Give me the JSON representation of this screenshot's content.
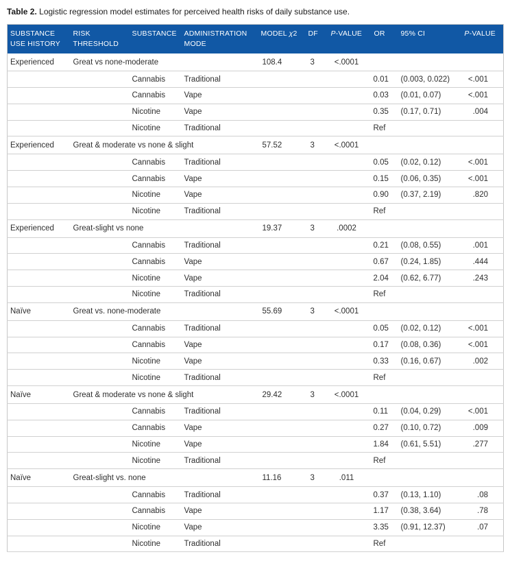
{
  "title": {
    "label": "Table 2.",
    "text": "Logistic regression model estimates for perceived health risks of daily substance use."
  },
  "colors": {
    "header_bg": "#1158a5",
    "header_text": "#ffffff",
    "row_border": "#d0d0d0",
    "body_text": "#2e2e2e"
  },
  "table": {
    "columns": {
      "history": "SUBSTANCE USE HISTORY",
      "threshold": "RISK THRESHOLD",
      "substance": "SUBSTANCE",
      "mode": "ADMINISTRATION MODE",
      "chi_prefix": "MODEL ",
      "chi_sym": "χ",
      "chi_suffix": "2",
      "df": "DF",
      "p_prefix": "P",
      "p_suffix": "-VALUE",
      "or": "OR",
      "ci": "95% CI"
    },
    "groups": [
      {
        "history": "Experienced",
        "threshold": "Great vs none-moderate",
        "chi2": "108.4",
        "df": "3",
        "p": "<.0001",
        "rows": [
          {
            "substance": "Cannabis",
            "mode": "Traditional",
            "or": "0.01",
            "ci": "(0.003, 0.022)",
            "p": "<.001"
          },
          {
            "substance": "Cannabis",
            "mode": "Vape",
            "or": "0.03",
            "ci": "(0.01, 0.07)",
            "p": "<.001"
          },
          {
            "substance": "Nicotine",
            "mode": "Vape",
            "or": "0.35",
            "ci": "(0.17, 0.71)",
            "p": ".004"
          },
          {
            "substance": "Nicotine",
            "mode": "Traditional",
            "or": "Ref",
            "ci": "",
            "p": ""
          }
        ]
      },
      {
        "history": "Experienced",
        "threshold": "Great & moderate vs none & slight",
        "chi2": "57.52",
        "df": "3",
        "p": "<.0001",
        "rows": [
          {
            "substance": "Cannabis",
            "mode": "Traditional",
            "or": "0.05",
            "ci": "(0.02, 0.12)",
            "p": "<.001"
          },
          {
            "substance": "Cannabis",
            "mode": "Vape",
            "or": "0.15",
            "ci": "(0.06, 0.35)",
            "p": "<.001"
          },
          {
            "substance": "Nicotine",
            "mode": "Vape",
            "or": "0.90",
            "ci": "(0.37, 2.19)",
            "p": ".820"
          },
          {
            "substance": "Nicotine",
            "mode": "Traditional",
            "or": "Ref",
            "ci": "",
            "p": ""
          }
        ]
      },
      {
        "history": "Experienced",
        "threshold": "Great-slight vs none",
        "chi2": "19.37",
        "df": "3",
        "p": ".0002",
        "rows": [
          {
            "substance": "Cannabis",
            "mode": "Traditional",
            "or": "0.21",
            "ci": "(0.08, 0.55)",
            "p": ".001"
          },
          {
            "substance": "Cannabis",
            "mode": "Vape",
            "or": "0.67",
            "ci": "(0.24, 1.85)",
            "p": ".444"
          },
          {
            "substance": "Nicotine",
            "mode": "Vape",
            "or": "2.04",
            "ci": "(0.62, 6.77)",
            "p": ".243"
          },
          {
            "substance": "Nicotine",
            "mode": "Traditional",
            "or": "Ref",
            "ci": "",
            "p": ""
          }
        ]
      },
      {
        "history": "Naïve",
        "threshold": "Great vs. none-moderate",
        "chi2": "55.69",
        "df": "3",
        "p": "<.0001",
        "rows": [
          {
            "substance": "Cannabis",
            "mode": "Traditional",
            "or": "0.05",
            "ci": "(0.02, 0.12)",
            "p": "<.001"
          },
          {
            "substance": "Cannabis",
            "mode": "Vape",
            "or": "0.17",
            "ci": "(0.08, 0.36)",
            "p": "<.001"
          },
          {
            "substance": "Nicotine",
            "mode": "Vape",
            "or": "0.33",
            "ci": "(0.16, 0.67)",
            "p": ".002"
          },
          {
            "substance": "Nicotine",
            "mode": "Traditional",
            "or": "Ref",
            "ci": "",
            "p": ""
          }
        ]
      },
      {
        "history": "Naïve",
        "threshold": "Great & moderate vs none & slight",
        "chi2": "29.42",
        "df": "3",
        "p": "<.0001",
        "rows": [
          {
            "substance": "Cannabis",
            "mode": "Traditional",
            "or": "0.11",
            "ci": "(0.04, 0.29)",
            "p": "<.001"
          },
          {
            "substance": "Cannabis",
            "mode": "Vape",
            "or": "0.27",
            "ci": "(0.10, 0.72)",
            "p": ".009"
          },
          {
            "substance": "Nicotine",
            "mode": "Vape",
            "or": "1.84",
            "ci": "(0.61, 5.51)",
            "p": ".277"
          },
          {
            "substance": "Nicotine",
            "mode": "Traditional",
            "or": "Ref",
            "ci": "",
            "p": ""
          }
        ]
      },
      {
        "history": "Naïve",
        "threshold": "Great-slight vs. none",
        "chi2": "11.16",
        "df": "3",
        "p": ".011",
        "rows": [
          {
            "substance": "Cannabis",
            "mode": "Traditional",
            "or": "0.37",
            "ci": "(0.13, 1.10)",
            "p": ".08"
          },
          {
            "substance": "Cannabis",
            "mode": "Vape",
            "or": "1.17",
            "ci": "(0.38, 3.64)",
            "p": ".78"
          },
          {
            "substance": "Nicotine",
            "mode": "Vape",
            "or": "3.35",
            "ci": "(0.91, 12.37)",
            "p": ".07"
          },
          {
            "substance": "Nicotine",
            "mode": "Traditional",
            "or": "Ref",
            "ci": "",
            "p": ""
          }
        ]
      }
    ]
  }
}
